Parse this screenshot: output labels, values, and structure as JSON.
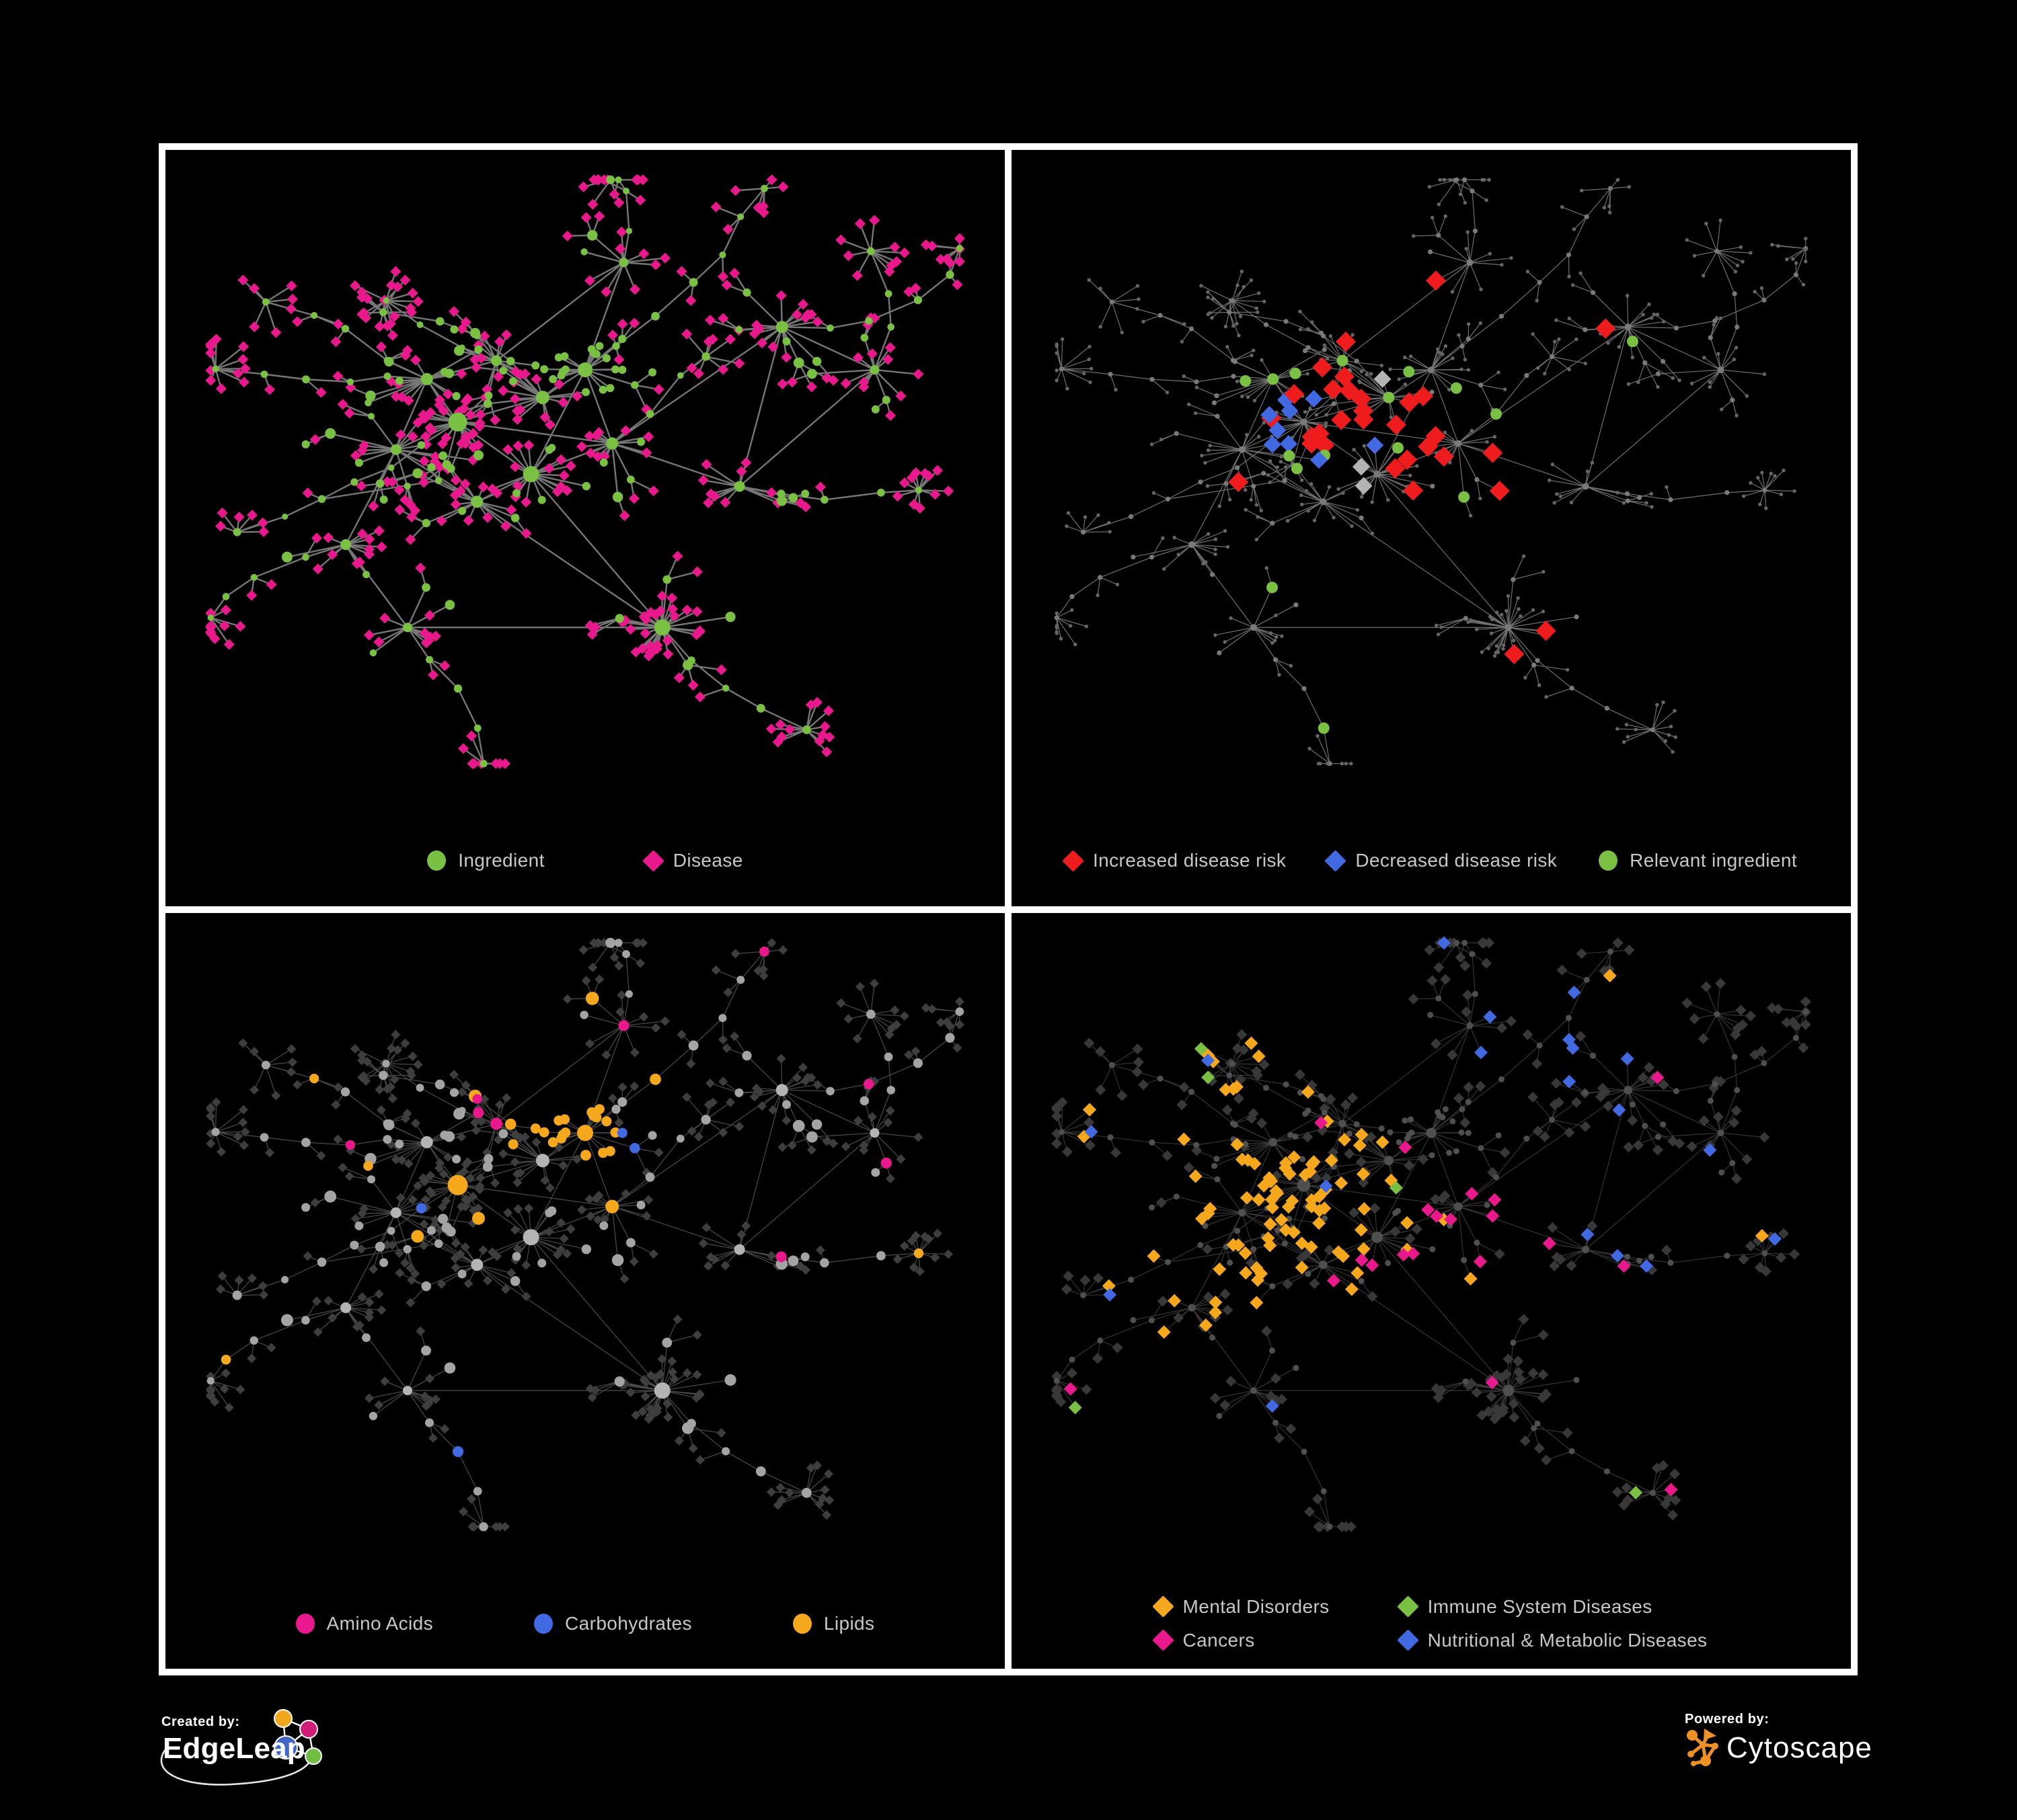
{
  "page": {
    "background": "#000000",
    "frame_color": "#FFFFFF"
  },
  "panels": [
    {
      "name": "ingredient-disease",
      "palette": {
        "edge": "#7C7C7C",
        "ingredient": "#7AC143",
        "disease": "#E9188C"
      },
      "legend": [
        {
          "label": "Ingredient",
          "shape": "circle",
          "color": "#7AC143"
        },
        {
          "label": "Disease",
          "shape": "diamond",
          "color": "#E9188C"
        }
      ]
    },
    {
      "name": "disease-risk",
      "palette": {
        "edge": "#8C8C8C",
        "dim": "#666666",
        "dim_strong": "#7A7A7A",
        "increased": "#EE1C1C",
        "decreased": "#4169E1",
        "neutral": "#B4B4B4",
        "relevant": "#7AC143"
      },
      "legend": [
        {
          "label": "Increased disease risk",
          "shape": "diamond",
          "color": "#EE1C1C"
        },
        {
          "label": "Decreased disease risk",
          "shape": "diamond",
          "color": "#4169E1"
        },
        {
          "label": "Relevant ingredient",
          "shape": "circle",
          "color": "#7AC143"
        }
      ]
    },
    {
      "name": "nutrient-classes",
      "palette": {
        "edge": "#B2B2B2",
        "disease_dim": "#3E3E3E",
        "ingredient_dim": "#A4A4A4",
        "ingredient_hub": "#B4B4B4",
        "amino_acids": "#E9188C",
        "carbohydrates": "#4169E1",
        "lipids": "#F5A81C"
      },
      "legend": [
        {
          "label": "Amino Acids",
          "shape": "circle",
          "color": "#E9188C"
        },
        {
          "label": "Carbohydrates",
          "shape": "circle",
          "color": "#4169E1"
        },
        {
          "label": "Lipids",
          "shape": "circle",
          "color": "#F5A81C"
        }
      ]
    },
    {
      "name": "disease-classes",
      "palette": {
        "edge": "#9C9C9C",
        "disease_dim": "#383838",
        "ingredient_dim": "#4F4F4F",
        "mental": "#F5A81C",
        "immune": "#7AC143",
        "cancers": "#E9188C",
        "nutritional": "#4169E1"
      },
      "legend": [
        {
          "label": "Mental Disorders",
          "shape": "diamond",
          "color": "#F5A81C"
        },
        {
          "label": "Immune System Diseases",
          "shape": "diamond",
          "color": "#7AC143"
        },
        {
          "label": "Cancers",
          "shape": "diamond",
          "color": "#E9188C"
        },
        {
          "label": "Nutritional & Metabolic Diseases",
          "shape": "diamond",
          "color": "#4169E1"
        }
      ]
    }
  ],
  "footer": {
    "created_by": {
      "label": "Created by:",
      "brand": "EdgeLeap"
    },
    "powered_by": {
      "label": "Powered by:",
      "brand": "Cytoscape",
      "brand_color": "#EE9124"
    }
  },
  "chart_data": [
    {
      "type": "network",
      "panel": "top-left",
      "legend": [
        {
          "label": "Ingredient",
          "marker": "green circle",
          "color": "#7AC143"
        },
        {
          "label": "Disease",
          "marker": "magenta diamond",
          "color": "#E9188C"
        }
      ],
      "description": "Node-link diagram of an ingredient-disease association network on a black background. Green circles are ingredients (sized by connectivity), magenta diamonds are diseases, gray edges connect them. One dense mixed core sits left of center, an ingredient-rich green cluster sits upper-center, a radial starburst hub sits below center, and branching chains of disease leaves reach toward the panel edges.",
      "approx_counts": {
        "nodes": 650,
        "ingredient_circles": 170,
        "disease_diamonds": 480
      },
      "edge_color": "#7C7C7C",
      "background": "#000000"
    },
    {
      "type": "network",
      "panel": "top-right",
      "legend": [
        {
          "label": "Increased disease risk",
          "marker": "red diamond",
          "color": "#EE1C1C"
        },
        {
          "label": "Decreased disease risk",
          "marker": "blue diamond",
          "color": "#4169E1"
        },
        {
          "label": "Relevant ingredient",
          "marker": "green circle",
          "color": "#7AC143"
        }
      ],
      "description": "Same network layout with all nodes dimmed to small gray dots. About 30 enlarged red diamonds (increased disease risk) concentrate around the core with a few on the right and bottom, roughly 10 blue diamonds (decreased risk) including a pair at the upper right, a few unlabeled light-gray diamonds, and about 20 green circles marking relevant ingredients in the center.",
      "approx_counts": {
        "increased_risk_red": 30,
        "decreased_risk_blue": 10,
        "relevant_ingredients_green": 20,
        "neutral_gray_diamonds": 8
      }
    },
    {
      "type": "network",
      "panel": "bottom-left",
      "legend": [
        {
          "label": "Amino Acids",
          "marker": "pink circle",
          "color": "#E9188C"
        },
        {
          "label": "Carbohydrates",
          "marker": "blue circle",
          "color": "#4169E1"
        },
        {
          "label": "Lipids",
          "marker": "amber circle",
          "color": "#F5A81C"
        }
      ],
      "description": "Same network with disease nodes drawn as small dark-gray diamonds and ingredient nodes as light-gray circles. Ingredient circles are tinted by nutrient class: a large amber Lipids cluster upper-center mixed with blue Carbohydrates, more amber through the core and lower starburst, and pink Amino Acids circles scattered around the periphery.",
      "approx_counts": {
        "lipids_amber": 55,
        "carbohydrates_blue": 15,
        "amino_acids_pink": 18
      }
    },
    {
      "type": "network",
      "panel": "bottom-right",
      "legend": [
        {
          "label": "Mental Disorders",
          "marker": "amber diamond",
          "color": "#F5A81C"
        },
        {
          "label": "Immune System Diseases",
          "marker": "green diamond",
          "color": "#7AC143"
        },
        {
          "label": "Cancers",
          "marker": "pink diamond",
          "color": "#E9188C"
        },
        {
          "label": "Nutritional & Metabolic Diseases",
          "marker": "blue diamond",
          "color": "#4169E1"
        }
      ],
      "description": "Same network with ingredient nodes as dark-gray circles and disease diamonds tinted by disease class: a dense amber Mental Disorders cluster left of center, pink Cancers diamonds through the middle plus a small group at the upper right, blue Nutritional & Metabolic Diseases on the right side and scattered above and below, and a few green Immune System Diseases diamonds near the center.",
      "approx_counts": {
        "mental_disorders_amber": 60,
        "cancers_pink": 35,
        "nutritional_metabolic_blue": 45,
        "immune_system_green": 8
      }
    }
  ]
}
